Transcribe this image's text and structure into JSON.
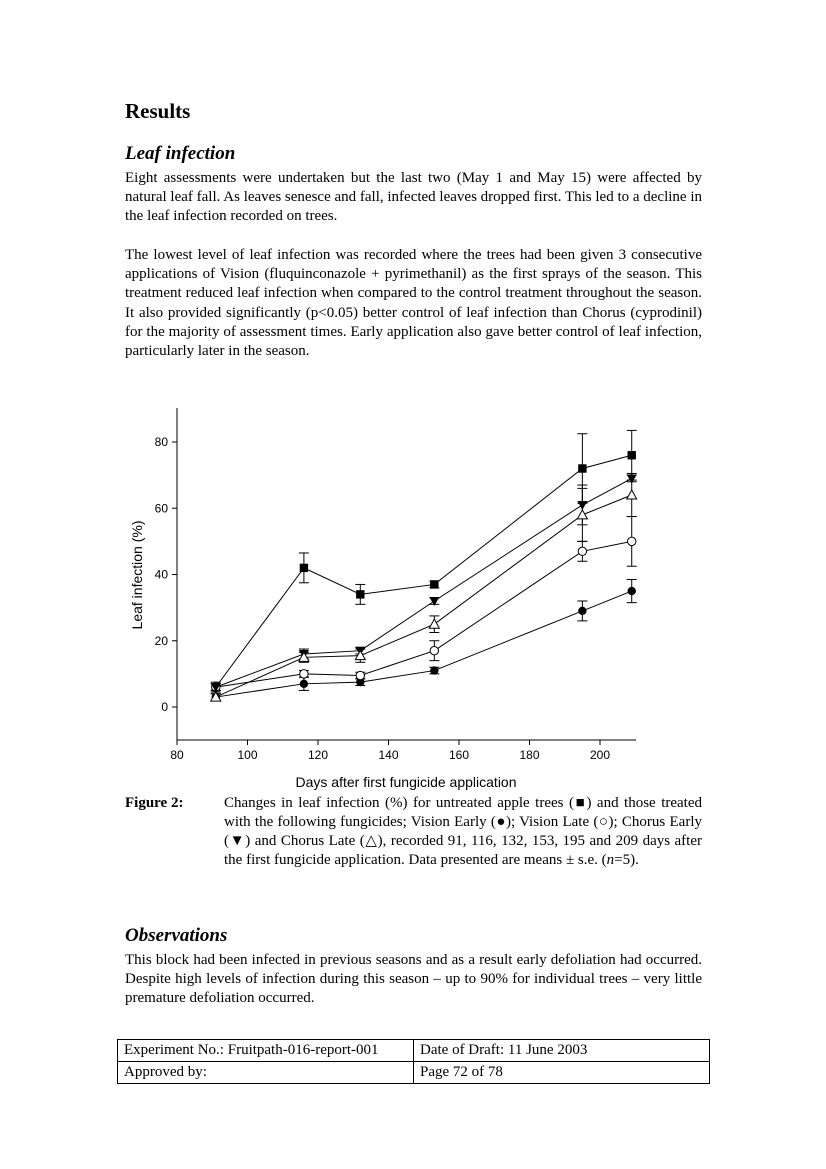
{
  "heading": "Results",
  "leaf": {
    "subheading": "Leaf infection",
    "para1": "Eight assessments were undertaken but the last two (May 1 and May 15) were affected by natural leaf fall.  As leaves senesce and fall, infected leaves dropped first. This led to a decline in the leaf infection recorded on trees.",
    "para2": "The lowest level of leaf infection was recorded where the trees had been given 3 consecutive applications of Vision (fluquinconazole + pyrimethanil) as the first sprays of the season.  This treatment reduced leaf infection when compared to the control treatment throughout the season.  It also provided significantly (p<0.05) better control of leaf infection than Chorus (cyprodinil) for the majority of assessment times.  Early application also gave better control of leaf infection, particularly later in the season."
  },
  "figure": {
    "label": "Figure 2:",
    "caption_html": "Changes in leaf infection (%) for untreated apple trees (■) and those treated with the following fungicides; Vision Early (●); Vision Late (○); Chorus Early (▼) and Chorus Late (△), recorded 91, 116, 132, 153, 195 and 209 days after the first fungicide application.  Data presented are means ± s.e. (<i>n</i>=5)."
  },
  "chart_data": {
    "type": "line",
    "xlabel": "Days after first fungicide application",
    "ylabel": "Leaf infection (%)",
    "xlim": [
      80,
      210
    ],
    "ylim": [
      -10,
      90
    ],
    "xticks": [
      80,
      100,
      120,
      140,
      160,
      180,
      200
    ],
    "yticks": [
      0,
      20,
      40,
      60,
      80
    ],
    "x": [
      91,
      116,
      132,
      153,
      195,
      209
    ],
    "grid": false,
    "series": [
      {
        "marker": "filled-square",
        "values": [
          6,
          42,
          34,
          37,
          72,
          76
        ],
        "errors": [
          1,
          4.5,
          3,
          1,
          10.5,
          7.5
        ]
      },
      {
        "marker": "filled-circle",
        "values": [
          3,
          7,
          7.5,
          11,
          29,
          35
        ],
        "errors": [
          1,
          2,
          1,
          1,
          3,
          3.5
        ]
      },
      {
        "marker": "open-circle",
        "values": [
          6,
          10,
          9.5,
          17,
          47,
          50
        ],
        "errors": [
          1.5,
          1,
          1,
          3,
          3,
          7.5
        ]
      },
      {
        "marker": "filled-triangle-down",
        "values": [
          6,
          16,
          17,
          32,
          61,
          69
        ],
        "errors": [
          1,
          1.5,
          1,
          1,
          6,
          1
        ]
      },
      {
        "marker": "open-triangle-up",
        "values": [
          3,
          15,
          15.5,
          25,
          58,
          64
        ],
        "errors": [
          1,
          1.5,
          2,
          2.5,
          8,
          6.5
        ]
      }
    ]
  },
  "observations": {
    "subheading": "Observations",
    "para": "This block had been infected in previous seasons and as a result early defoliation had occurred.  Despite high levels of infection during this season – up to 90% for individual trees – very little premature defoliation occurred."
  },
  "footer": {
    "experiment": "Experiment No.: Fruitpath-016-report-001",
    "date": "Date of Draft: 11 June 2003",
    "approved": "Approved by:",
    "page": "Page 72 of 78"
  }
}
